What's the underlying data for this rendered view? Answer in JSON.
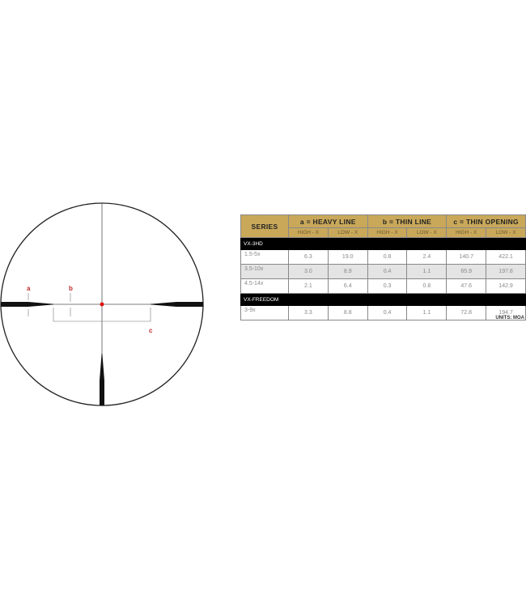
{
  "reticle": {
    "labels": {
      "a": "a",
      "b": "b",
      "c": "c"
    },
    "colors": {
      "dot": "#e01010",
      "label": "#c0282a",
      "line": "#111111"
    }
  },
  "table": {
    "series_header": "SERIES",
    "groups": [
      "a = HEAVY LINE",
      "b = THIN LINE",
      "c = THIN OPENING"
    ],
    "subheaders": [
      "HIGH - X",
      "LOW - X",
      "HIGH - X",
      "LOW - X",
      "HIGH - X",
      "LOW - X"
    ],
    "sections": [
      {
        "name": "VX-3HD",
        "rows": [
          {
            "series": "1.5-5x",
            "values": [
              "6.3",
              "19.0",
              "0.8",
              "2.4",
              "140.7",
              "422.1"
            ]
          },
          {
            "series": "3.5-10x",
            "values": [
              "3.0",
              "8.9",
              "0.4",
              "1.1",
              "65.9",
              "197.8"
            ]
          },
          {
            "series": "4.5-14x",
            "values": [
              "2.1",
              "6.4",
              "0.3",
              "0.8",
              "47.6",
              "142.9"
            ]
          }
        ]
      },
      {
        "name": "VX-FREEDOM",
        "rows": [
          {
            "series": "3-9x",
            "values": [
              "3.3",
              "8.8",
              "0.4",
              "1.1",
              "72.8",
              "194.7"
            ]
          }
        ]
      }
    ],
    "units": "UNITS: MOA",
    "header_color": "#c9a85a"
  }
}
